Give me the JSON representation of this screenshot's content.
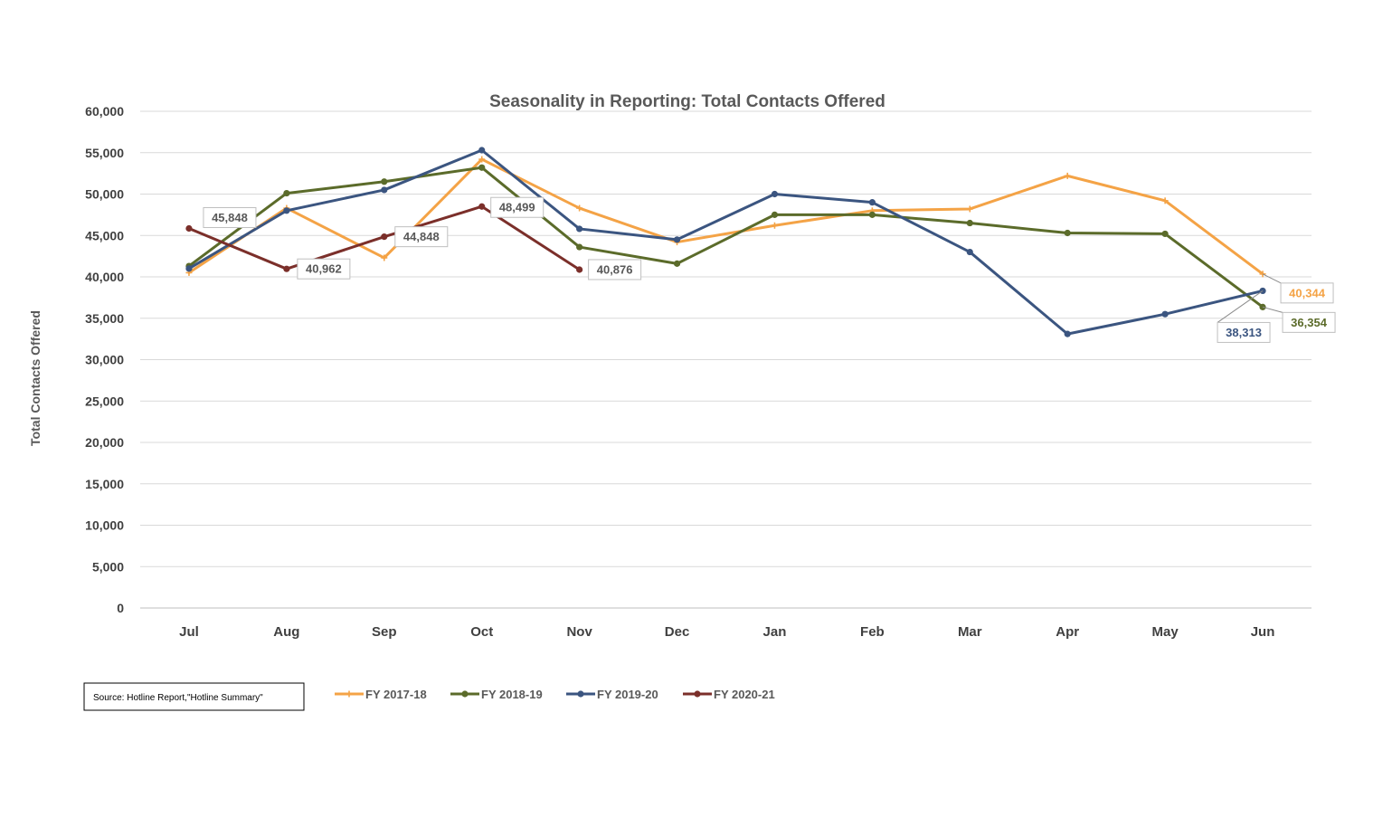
{
  "chart_data": {
    "type": "line",
    "title": "Seasonality in Reporting: Total Contacts Offered",
    "xlabel": "",
    "ylabel": "Total Contacts Offered",
    "ylim": [
      0,
      60000
    ],
    "yticks": [
      0,
      5000,
      10000,
      15000,
      20000,
      25000,
      30000,
      35000,
      40000,
      45000,
      50000,
      55000,
      60000
    ],
    "ytick_labels": [
      "0",
      "5,000",
      "10,000",
      "15,000",
      "20,000",
      "25,000",
      "30,000",
      "35,000",
      "40,000",
      "45,000",
      "50,000",
      "55,000",
      "60,000"
    ],
    "categories": [
      "Jul",
      "Aug",
      "Sep",
      "Oct",
      "Nov",
      "Dec",
      "Jan",
      "Feb",
      "Mar",
      "Apr",
      "May",
      "Jun"
    ],
    "grid": "horizontal",
    "legend_position": "bottom",
    "series": [
      {
        "name": "FY 2017-18",
        "color": "#F4A346",
        "marker": "plus",
        "values": [
          40500,
          48300,
          42300,
          54200,
          48300,
          44200,
          46200,
          48000,
          48200,
          52200,
          49200,
          40344
        ],
        "labels": [
          {
            "index": 11,
            "text": "40,344"
          }
        ]
      },
      {
        "name": "FY 2018-19",
        "color": "#5B6B2A",
        "marker": "circle",
        "values": [
          41300,
          50100,
          51500,
          53200,
          43600,
          41600,
          47500,
          47500,
          46500,
          45300,
          45200,
          36354
        ],
        "labels": [
          {
            "index": 11,
            "text": "36,354"
          }
        ]
      },
      {
        "name": "FY 2019-20",
        "color": "#3B5580",
        "marker": "circle",
        "values": [
          41000,
          48000,
          50500,
          55300,
          45800,
          44500,
          50000,
          49000,
          43000,
          33100,
          35500,
          38313
        ],
        "labels": [
          {
            "index": 11,
            "text": "38,313"
          }
        ]
      },
      {
        "name": "FY 2020-21",
        "color": "#7B2F2A",
        "marker": "circle",
        "values": [
          45848,
          40962,
          44848,
          48499,
          40876,
          null,
          null,
          null,
          null,
          null,
          null,
          null
        ],
        "labels": [
          {
            "index": 0,
            "text": "45,848"
          },
          {
            "index": 1,
            "text": "40,962"
          },
          {
            "index": 2,
            "text": "44,848"
          },
          {
            "index": 3,
            "text": "48,499"
          },
          {
            "index": 4,
            "text": "40,876"
          }
        ]
      }
    ]
  },
  "source_note": "Source: Hotline Report,\"Hotline Summary\""
}
